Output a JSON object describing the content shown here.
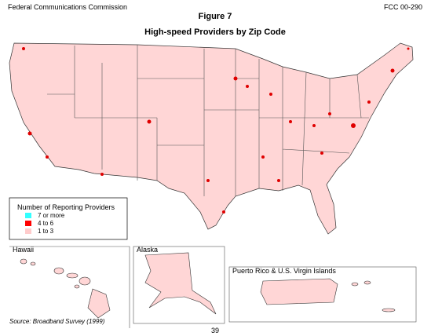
{
  "header": {
    "left": "Federal Communications Commission",
    "right": "FCC 00-290",
    "title": "Figure 7",
    "subtitle": "High-speed Providers by Zip Code"
  },
  "legend": {
    "title": "Number of Reporting Providers",
    "items": [
      {
        "label": "7 or more",
        "color": "#33ffff"
      },
      {
        "label": "4 to 6",
        "color": "#ff0000"
      },
      {
        "label": "1 to 3",
        "color": "#ffcccc"
      }
    ]
  },
  "insets": {
    "hawaii": "Hawaii",
    "alaska": "Alaska",
    "puerto_rico": "Puerto Rico & U.S. Virgin Islands"
  },
  "footer": {
    "source": "Source: Broadband Survey (1999)",
    "page": "39"
  }
}
